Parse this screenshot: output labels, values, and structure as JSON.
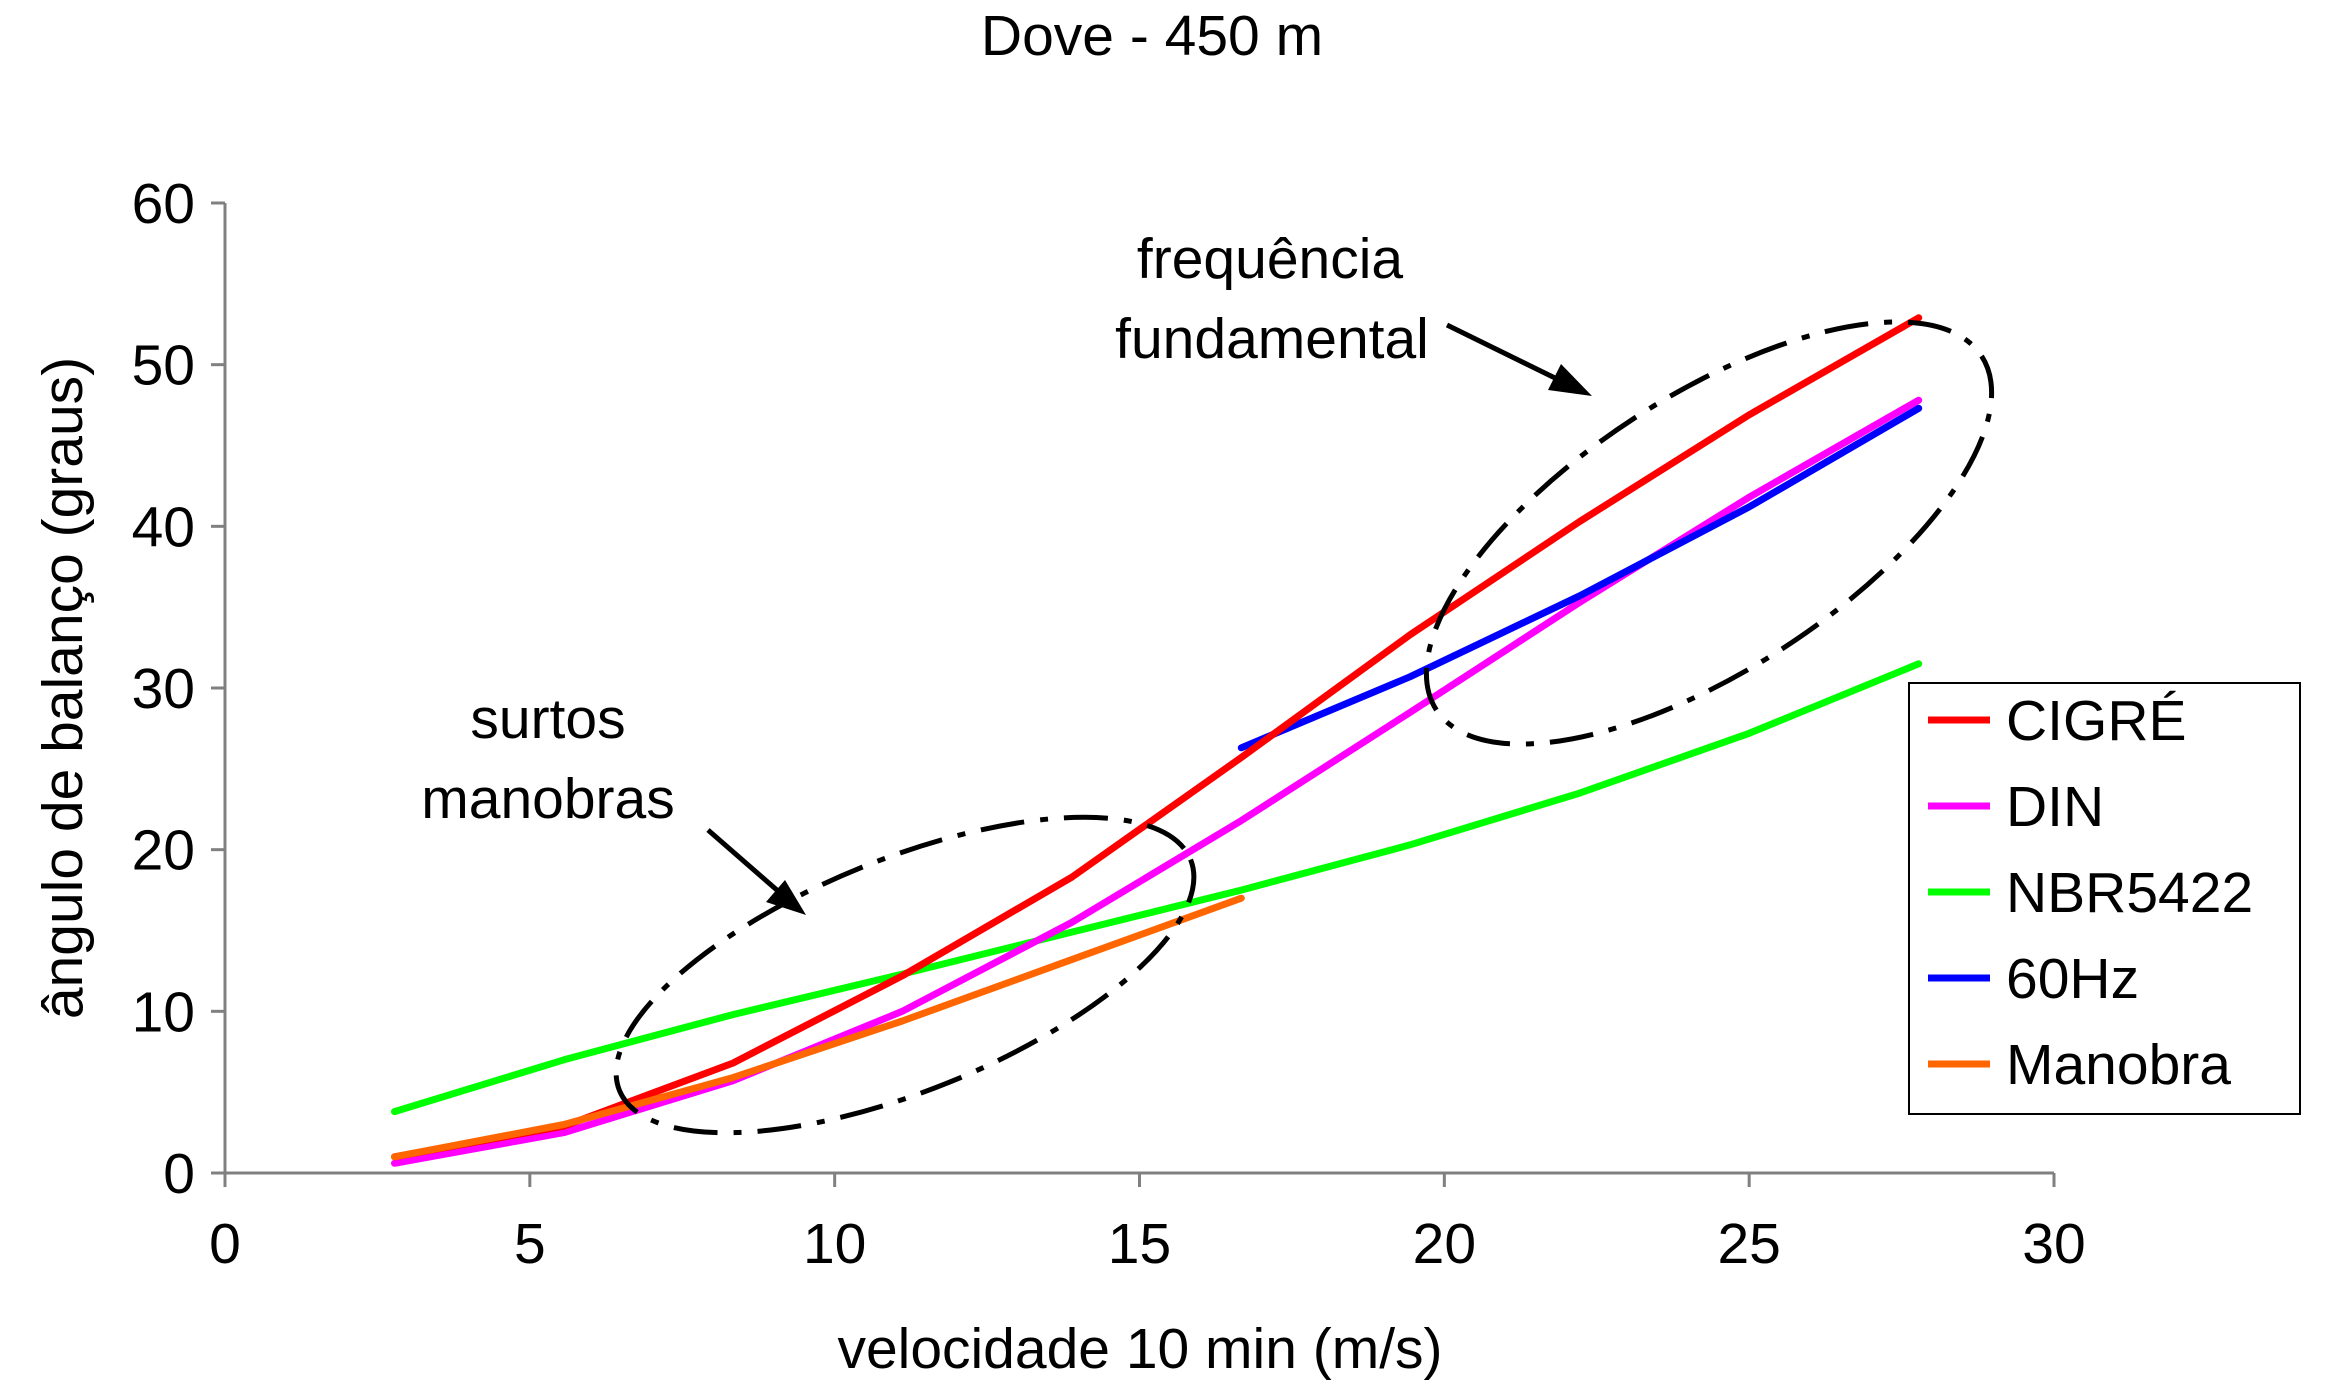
{
  "chart_data": {
    "type": "line",
    "title": "Dove - 450 m",
    "xlabel": "velocidade 10 min (m/s)",
    "ylabel": "ângulo de balanço (graus)",
    "xlim": [
      0,
      30
    ],
    "ylim": [
      0,
      60
    ],
    "xticks": [
      "0",
      "5",
      "10",
      "15",
      "20",
      "25",
      "30"
    ],
    "yticks": [
      "0",
      "10",
      "20",
      "30",
      "40",
      "50",
      "60"
    ],
    "grid": false,
    "legend_position": "right",
    "series": [
      {
        "name": "CIGRÉ",
        "color": "#ff0000",
        "x": [
          2.78,
          5.56,
          8.33,
          11.11,
          13.89,
          16.67,
          19.44,
          22.22,
          25.0,
          27.78
        ],
        "y": [
          1.0,
          2.9,
          6.8,
          12.2,
          18.3,
          25.7,
          33.3,
          40.3,
          46.9,
          52.9
        ]
      },
      {
        "name": "DIN",
        "color": "#ff00ff",
        "x": [
          2.78,
          5.56,
          8.33,
          11.11,
          13.89,
          16.67,
          19.44,
          22.22,
          25.0,
          27.78
        ],
        "y": [
          0.6,
          2.5,
          5.7,
          10.0,
          15.5,
          21.8,
          28.5,
          35.3,
          41.8,
          47.8
        ]
      },
      {
        "name": "NBR5422",
        "color": "#00ff00",
        "x": [
          2.78,
          5.56,
          8.33,
          11.11,
          13.89,
          16.67,
          19.44,
          22.22,
          25.0,
          27.78
        ],
        "y": [
          3.8,
          7.0,
          9.8,
          12.3,
          14.9,
          17.5,
          20.3,
          23.5,
          27.2,
          31.5
        ]
      },
      {
        "name": "60Hz",
        "color": "#0000ff",
        "x": [
          16.67,
          19.44,
          22.22,
          25.0,
          27.78
        ],
        "y": [
          26.3,
          30.7,
          35.7,
          41.2,
          47.3
        ]
      },
      {
        "name": "Manobra",
        "color": "#ff6600",
        "x": [
          2.78,
          5.56,
          8.33,
          11.11,
          13.89,
          16.67
        ],
        "y": [
          1.0,
          3.0,
          5.9,
          9.4,
          13.2,
          17.0
        ]
      }
    ],
    "annotations": [
      {
        "id": "freq",
        "lines": [
          "frequência",
          "fundamental"
        ]
      },
      {
        "id": "surtos",
        "lines": [
          "surtos",
          "manobras"
        ]
      }
    ]
  }
}
